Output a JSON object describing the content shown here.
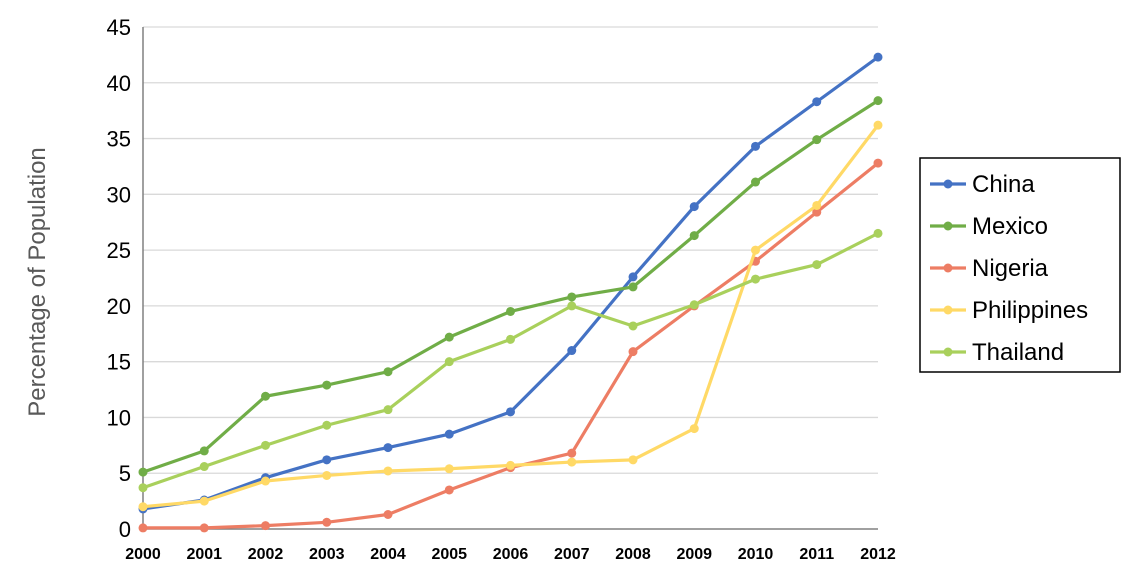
{
  "chart_data": {
    "type": "line",
    "title": "",
    "xlabel": "",
    "ylabel": "Percentage of Population",
    "x": [
      "2000",
      "2001",
      "2002",
      "2003",
      "2004",
      "2005",
      "2006",
      "2007",
      "2008",
      "2009",
      "2010",
      "2011",
      "2012"
    ],
    "ylim": [
      0,
      45
    ],
    "yticks": [
      "0",
      "5",
      "10",
      "15",
      "20",
      "25",
      "30",
      "35",
      "40",
      "45"
    ],
    "grid": true,
    "legend_position": "right",
    "series": [
      {
        "name": "China",
        "color": "#4472C4",
        "values": [
          1.8,
          2.6,
          4.6,
          6.2,
          7.3,
          8.5,
          10.5,
          16.0,
          22.6,
          28.9,
          34.3,
          38.3,
          42.3
        ]
      },
      {
        "name": "Mexico",
        "color": "#70AD47",
        "values": [
          5.1,
          7.0,
          11.9,
          12.9,
          14.1,
          17.2,
          19.5,
          20.8,
          21.7,
          26.3,
          31.1,
          34.9,
          38.4
        ]
      },
      {
        "name": "Nigeria",
        "color": "#ED7D64",
        "values": [
          0.1,
          0.1,
          0.3,
          0.6,
          1.3,
          3.5,
          5.5,
          6.8,
          15.9,
          20.0,
          24.0,
          28.4,
          32.8
        ]
      },
      {
        "name": "Philippines",
        "color": "#FFD966",
        "values": [
          2.0,
          2.5,
          4.3,
          4.8,
          5.2,
          5.4,
          5.7,
          6.0,
          6.2,
          9.0,
          25.0,
          29.0,
          36.2
        ]
      },
      {
        "name": "Thailand",
        "color": "#A9D05C",
        "values": [
          3.7,
          5.6,
          7.5,
          9.3,
          10.7,
          15.0,
          17.0,
          20.0,
          18.2,
          20.1,
          22.4,
          23.7,
          26.5
        ]
      }
    ]
  }
}
